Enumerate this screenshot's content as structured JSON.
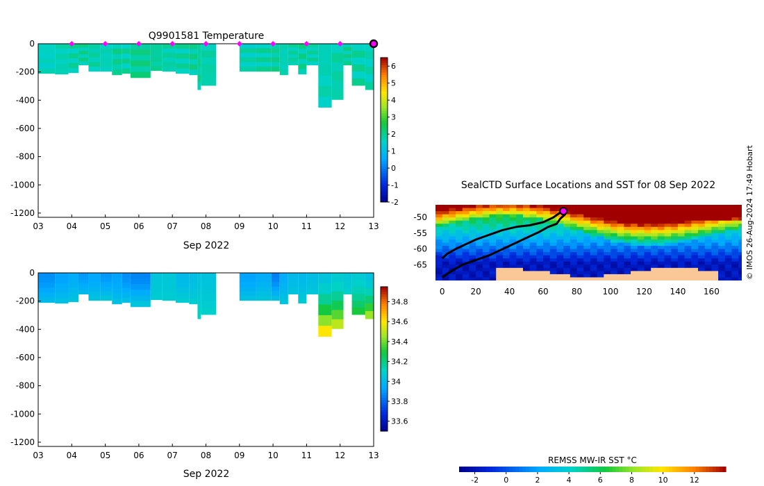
{
  "credit": "© IMOS 26-Aug-2024 17:49 Hobart",
  "chart_data": [
    {
      "id": "temperature",
      "type": "heatmap",
      "title": "Q9901581  Temperature",
      "xlabel": "Sep 2022",
      "ylabel": "",
      "x_ticks": [
        "03",
        "04",
        "05",
        "06",
        "07",
        "08",
        "09",
        "10",
        "11",
        "12",
        "13"
      ],
      "xlim": [
        3,
        13
      ],
      "ylim": [
        -1230,
        0
      ],
      "y_ticks": [
        0,
        -200,
        -400,
        -600,
        -800,
        -1000,
        -1200
      ],
      "colorbar": {
        "min": -2,
        "max": 6.5,
        "ticks": [
          -2,
          -1,
          0,
          1,
          2,
          3,
          4,
          5,
          6
        ]
      },
      "surface_markers_day": [
        4,
        5,
        6,
        7,
        8,
        9,
        10,
        11,
        12
      ],
      "latest_marker_day": 13,
      "profiles": [
        {
          "x0": 3.0,
          "x1": 3.5,
          "depth": 210,
          "value": 1.6
        },
        {
          "x0": 3.5,
          "x1": 3.9,
          "depth": 215,
          "value": 1.7
        },
        {
          "x0": 3.9,
          "x1": 4.2,
          "depth": 205,
          "value": 1.8
        },
        {
          "x0": 4.2,
          "x1": 4.5,
          "depth": 150,
          "value": 1.9
        },
        {
          "x0": 4.5,
          "x1": 4.85,
          "depth": 195,
          "value": 1.8
        },
        {
          "x0": 4.85,
          "x1": 5.2,
          "depth": 195,
          "value": 1.7
        },
        {
          "x0": 5.2,
          "x1": 5.5,
          "depth": 220,
          "value": 1.9
        },
        {
          "x0": 5.5,
          "x1": 5.75,
          "depth": 210,
          "value": 1.8
        },
        {
          "x0": 5.75,
          "x1": 6.35,
          "depth": 240,
          "value": 2.0
        },
        {
          "x0": 6.35,
          "x1": 6.7,
          "depth": 190,
          "value": 1.9
        },
        {
          "x0": 6.7,
          "x1": 7.1,
          "depth": 195,
          "value": 1.8
        },
        {
          "x0": 7.1,
          "x1": 7.5,
          "depth": 210,
          "value": 1.8
        },
        {
          "x0": 7.5,
          "x1": 7.75,
          "depth": 220,
          "value": 1.9
        },
        {
          "x0": 7.75,
          "x1": 7.85,
          "depth": 325,
          "value": 1.9
        },
        {
          "x0": 7.85,
          "x1": 8.3,
          "depth": 295,
          "value": 1.8
        },
        {
          "x0": 9.0,
          "x1": 9.5,
          "depth": 195,
          "value": 1.7
        },
        {
          "x0": 9.5,
          "x1": 9.95,
          "depth": 195,
          "value": 1.8
        },
        {
          "x0": 9.95,
          "x1": 10.2,
          "depth": 195,
          "value": 1.9
        },
        {
          "x0": 10.2,
          "x1": 10.45,
          "depth": 220,
          "value": 1.7
        },
        {
          "x0": 10.45,
          "x1": 10.75,
          "depth": 150,
          "value": 1.8
        },
        {
          "x0": 10.75,
          "x1": 11.0,
          "depth": 215,
          "value": 1.9
        },
        {
          "x0": 11.0,
          "x1": 11.35,
          "depth": 150,
          "value": 1.8
        },
        {
          "x0": 11.35,
          "x1": 11.75,
          "depth": 450,
          "value": 1.7
        },
        {
          "x0": 11.75,
          "x1": 12.1,
          "depth": 395,
          "value": 1.8
        },
        {
          "x0": 12.1,
          "x1": 12.35,
          "depth": 150,
          "value": 1.9
        },
        {
          "x0": 12.35,
          "x1": 12.75,
          "depth": 295,
          "value": 1.8
        },
        {
          "x0": 12.75,
          "x1": 13.1,
          "depth": 325,
          "value": 1.7
        }
      ]
    },
    {
      "id": "salinity",
      "type": "heatmap",
      "title": "",
      "xlabel": "Sep 2022",
      "ylabel": "",
      "x_ticks": [
        "03",
        "04",
        "05",
        "06",
        "07",
        "08",
        "09",
        "10",
        "11",
        "12",
        "13"
      ],
      "xlim": [
        3,
        13
      ],
      "ylim": [
        -1230,
        0
      ],
      "y_ticks": [
        0,
        -200,
        -400,
        -600,
        -800,
        -1000,
        -1200
      ],
      "colorbar": {
        "min": 33.5,
        "max": 34.95,
        "ticks": [
          33.6,
          33.8,
          34,
          34.2,
          34.4,
          34.6,
          34.8
        ],
        "tick_labels": [
          "33.6",
          "33.8",
          "34",
          "34.2",
          "34.4",
          "34.6",
          "34.8"
        ]
      },
      "profiles": [
        {
          "x0": 3.0,
          "x1": 3.5,
          "depth": 210,
          "surface": 33.88,
          "deep": 34.0
        },
        {
          "x0": 3.5,
          "x1": 3.9,
          "depth": 215,
          "surface": 33.92,
          "deep": 34.02
        },
        {
          "x0": 3.9,
          "x1": 4.2,
          "depth": 205,
          "surface": 33.95,
          "deep": 34.04
        },
        {
          "x0": 4.2,
          "x1": 4.5,
          "depth": 150,
          "surface": 33.9,
          "deep": 34.0
        },
        {
          "x0": 4.5,
          "x1": 4.85,
          "depth": 195,
          "surface": 33.93,
          "deep": 34.04
        },
        {
          "x0": 4.85,
          "x1": 5.2,
          "depth": 195,
          "surface": 33.9,
          "deep": 34.05
        },
        {
          "x0": 5.2,
          "x1": 5.5,
          "depth": 220,
          "surface": 33.92,
          "deep": 34.03
        },
        {
          "x0": 5.5,
          "x1": 5.75,
          "depth": 210,
          "surface": 33.88,
          "deep": 34.02
        },
        {
          "x0": 5.75,
          "x1": 6.35,
          "depth": 240,
          "surface": 33.86,
          "deep": 34.05
        },
        {
          "x0": 6.35,
          "x1": 6.7,
          "depth": 190,
          "surface": 34.05,
          "deep": 34.08
        },
        {
          "x0": 6.7,
          "x1": 7.1,
          "depth": 195,
          "surface": 34.06,
          "deep": 34.08
        },
        {
          "x0": 7.1,
          "x1": 7.5,
          "depth": 210,
          "surface": 34.0,
          "deep": 34.08
        },
        {
          "x0": 7.5,
          "x1": 7.75,
          "depth": 220,
          "surface": 34.02,
          "deep": 34.08
        },
        {
          "x0": 7.75,
          "x1": 7.85,
          "depth": 325,
          "surface": 34.05,
          "deep": 34.12
        },
        {
          "x0": 7.85,
          "x1": 8.3,
          "depth": 295,
          "surface": 34.04,
          "deep": 34.1
        },
        {
          "x0": 9.0,
          "x1": 9.5,
          "depth": 195,
          "surface": 33.92,
          "deep": 34.03
        },
        {
          "x0": 9.5,
          "x1": 9.95,
          "depth": 195,
          "surface": 33.95,
          "deep": 34.05
        },
        {
          "x0": 9.95,
          "x1": 10.2,
          "depth": 195,
          "surface": 33.85,
          "deep": 34.02
        },
        {
          "x0": 10.2,
          "x1": 10.45,
          "depth": 220,
          "surface": 33.95,
          "deep": 34.05
        },
        {
          "x0": 10.45,
          "x1": 10.75,
          "depth": 150,
          "surface": 34.0,
          "deep": 34.05
        },
        {
          "x0": 10.75,
          "x1": 11.0,
          "depth": 215,
          "surface": 34.0,
          "deep": 34.07
        },
        {
          "x0": 11.0,
          "x1": 11.35,
          "depth": 150,
          "surface": 34.02,
          "deep": 34.06
        },
        {
          "x0": 11.35,
          "x1": 11.75,
          "depth": 450,
          "surface": 34.05,
          "deep": 34.6
        },
        {
          "x0": 11.75,
          "x1": 12.1,
          "depth": 395,
          "surface": 34.08,
          "deep": 34.5
        },
        {
          "x0": 12.1,
          "x1": 12.35,
          "depth": 150,
          "surface": 34.06,
          "deep": 34.1
        },
        {
          "x0": 12.35,
          "x1": 12.75,
          "depth": 295,
          "surface": 34.08,
          "deep": 34.3
        },
        {
          "x0": 12.75,
          "x1": 13.1,
          "depth": 325,
          "surface": 34.04,
          "deep": 34.45
        }
      ]
    },
    {
      "id": "sst-map",
      "type": "heatmap",
      "title": "SealCTD Surface Locations and SST for 08 Sep 2022",
      "xlabel": "",
      "ylabel": "",
      "xlim": [
        -4,
        178
      ],
      "ylim": [
        -70,
        -46
      ],
      "x_ticks": [
        0,
        20,
        40,
        60,
        80,
        100,
        120,
        140,
        160
      ],
      "y_ticks": [
        -50,
        -55,
        -60,
        -65
      ],
      "track": [
        [
          0,
          -63
        ],
        [
          3,
          -61.5
        ],
        [
          8,
          -60
        ],
        [
          14,
          -58.5
        ],
        [
          20,
          -57
        ],
        [
          28,
          -55.5
        ],
        [
          36,
          -54
        ],
        [
          44,
          -53
        ],
        [
          52,
          -52.5
        ],
        [
          60,
          -51.5
        ],
        [
          66,
          -50
        ],
        [
          70,
          -48.5
        ],
        [
          72,
          -48
        ],
        [
          73,
          -49
        ],
        [
          70,
          -50.5
        ],
        [
          68,
          -52
        ],
        [
          63,
          -53
        ],
        [
          58,
          -54.5
        ],
        [
          52,
          -56
        ],
        [
          44,
          -58
        ],
        [
          36,
          -60
        ],
        [
          28,
          -62
        ],
        [
          20,
          -63.5
        ],
        [
          12,
          -65
        ],
        [
          4,
          -67.5
        ],
        [
          0,
          -69
        ]
      ],
      "latest_position": [
        72,
        -48
      ],
      "colorbar": {
        "label": "REMSS MW-IR SST °C",
        "min": -3,
        "max": 14,
        "ticks": [
          -2,
          0,
          2,
          4,
          6,
          8,
          10,
          12
        ]
      }
    }
  ],
  "colors": {
    "marker": "#ff00ff",
    "track": "#000000",
    "land": "#f9c896",
    "ocean_deep": "#000c8c",
    "axis": "#000000"
  }
}
